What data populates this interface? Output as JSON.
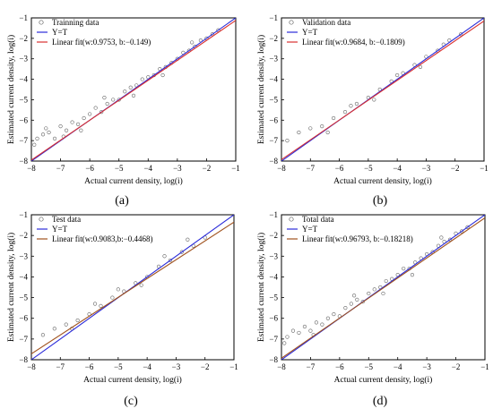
{
  "chart_data": [
    {
      "type": "scatter",
      "panel_label": "(a)",
      "xlabel": "Actual current density, log(i)",
      "ylabel": "Estimated current density, log(i)",
      "xlim": [
        -8,
        -1
      ],
      "ylim": [
        -8,
        -1
      ],
      "xticks": [
        -8,
        -7,
        -6,
        -5,
        -4,
        -3,
        -2,
        -1
      ],
      "yticks": [
        -8,
        -7,
        -6,
        -5,
        -4,
        -3,
        -2,
        -1
      ],
      "grid": false,
      "legend_position": "top-left",
      "series": [
        {
          "name": "Trainning data",
          "kind": "points",
          "marker": "open-circle",
          "color": "#666666",
          "points": [
            [
              -7.8,
              -6.9
            ],
            [
              -7.6,
              -6.7
            ],
            [
              -7.4,
              -6.6
            ],
            [
              -7.2,
              -6.9
            ],
            [
              -7.0,
              -6.3
            ],
            [
              -6.8,
              -6.5
            ],
            [
              -6.6,
              -6.1
            ],
            [
              -6.4,
              -6.2
            ],
            [
              -6.2,
              -5.9
            ],
            [
              -6.0,
              -5.7
            ],
            [
              -5.8,
              -5.4
            ],
            [
              -5.6,
              -5.6
            ],
            [
              -5.4,
              -5.2
            ],
            [
              -5.2,
              -5.0
            ],
            [
              -5.0,
              -5.0
            ],
            [
              -4.8,
              -4.6
            ],
            [
              -4.6,
              -4.4
            ],
            [
              -4.4,
              -4.3
            ],
            [
              -4.2,
              -4.0
            ],
            [
              -4.0,
              -3.9
            ],
            [
              -3.8,
              -3.8
            ],
            [
              -3.6,
              -3.5
            ],
            [
              -3.4,
              -3.4
            ],
            [
              -3.2,
              -3.2
            ],
            [
              -3.0,
              -3.0
            ],
            [
              -2.8,
              -2.7
            ],
            [
              -2.6,
              -2.6
            ],
            [
              -2.4,
              -2.4
            ],
            [
              -2.2,
              -2.1
            ],
            [
              -2.0,
              -2.0
            ],
            [
              -1.8,
              -1.8
            ],
            [
              -1.6,
              -1.6
            ],
            [
              -7.9,
              -7.2
            ],
            [
              -7.5,
              -6.4
            ],
            [
              -6.9,
              -6.8
            ],
            [
              -6.3,
              -6.5
            ],
            [
              -5.5,
              -4.9
            ],
            [
              -4.5,
              -4.8
            ],
            [
              -3.5,
              -3.8
            ],
            [
              -2.5,
              -2.2
            ]
          ]
        },
        {
          "name": "Y=T",
          "kind": "line",
          "color": "#2b2bd9",
          "w": 1,
          "b": 0
        },
        {
          "name": "Linear fit(w:0.9753, b:−0.149)",
          "kind": "line",
          "color": "#d93030",
          "w": 0.9753,
          "b": -0.149
        }
      ]
    },
    {
      "type": "scatter",
      "panel_label": "(b)",
      "xlabel": "Actual current density, log(i)",
      "ylabel": "Estimated current density, log(i)",
      "xlim": [
        -8,
        -1
      ],
      "ylim": [
        -8,
        -1
      ],
      "xticks": [
        -8,
        -7,
        -6,
        -5,
        -4,
        -3,
        -2,
        -1
      ],
      "yticks": [
        -8,
        -7,
        -6,
        -5,
        -4,
        -3,
        -2,
        -1
      ],
      "grid": false,
      "legend_position": "top-left",
      "series": [
        {
          "name": "Validation data",
          "kind": "points",
          "marker": "open-circle",
          "color": "#666666",
          "points": [
            [
              -7.8,
              -7.0
            ],
            [
              -7.4,
              -6.6
            ],
            [
              -7.0,
              -6.4
            ],
            [
              -6.6,
              -6.3
            ],
            [
              -6.2,
              -5.9
            ],
            [
              -5.8,
              -5.6
            ],
            [
              -5.4,
              -5.2
            ],
            [
              -5.0,
              -4.9
            ],
            [
              -4.6,
              -4.5
            ],
            [
              -4.2,
              -4.1
            ],
            [
              -3.8,
              -3.7
            ],
            [
              -3.4,
              -3.3
            ],
            [
              -3.0,
              -2.9
            ],
            [
              -2.6,
              -2.6
            ],
            [
              -2.2,
              -2.1
            ],
            [
              -1.8,
              -1.8
            ],
            [
              -6.4,
              -6.6
            ],
            [
              -5.6,
              -5.3
            ],
            [
              -4.8,
              -5.0
            ],
            [
              -4.0,
              -3.8
            ],
            [
              -3.2,
              -3.4
            ],
            [
              -2.4,
              -2.3
            ]
          ]
        },
        {
          "name": "Y=T",
          "kind": "line",
          "color": "#2b2bd9",
          "w": 1,
          "b": 0
        },
        {
          "name": "Linear fit(w:0.9684, b:−0.1809)",
          "kind": "line",
          "color": "#d93030",
          "w": 0.9684,
          "b": -0.1809
        }
      ]
    },
    {
      "type": "scatter",
      "panel_label": "(c)",
      "xlabel": "Actual current density, log(i)",
      "ylabel": "Estimated current density, log(i)",
      "xlim": [
        -8,
        -1
      ],
      "ylim": [
        -8,
        -1
      ],
      "xticks": [
        -8,
        -7,
        -6,
        -5,
        -4,
        -3,
        -2,
        -1
      ],
      "yticks": [
        -8,
        -7,
        -6,
        -5,
        -4,
        -3,
        -2,
        -1
      ],
      "grid": false,
      "legend_position": "top-left",
      "series": [
        {
          "name": "Test data",
          "kind": "points",
          "marker": "open-circle",
          "color": "#666666",
          "points": [
            [
              -7.6,
              -6.8
            ],
            [
              -7.2,
              -6.5
            ],
            [
              -6.8,
              -6.3
            ],
            [
              -6.4,
              -6.1
            ],
            [
              -6.0,
              -5.8
            ],
            [
              -5.6,
              -5.4
            ],
            [
              -5.2,
              -5.0
            ],
            [
              -4.8,
              -4.7
            ],
            [
              -4.4,
              -4.3
            ],
            [
              -4.0,
              -4.0
            ],
            [
              -3.6,
              -3.5
            ],
            [
              -3.2,
              -3.2
            ],
            [
              -2.8,
              -2.8
            ],
            [
              -2.4,
              -2.5
            ],
            [
              -2.0,
              -2.1
            ],
            [
              -6.6,
              -6.5
            ],
            [
              -5.8,
              -5.3
            ],
            [
              -5.0,
              -4.6
            ],
            [
              -4.2,
              -4.4
            ],
            [
              -3.4,
              -3.0
            ],
            [
              -2.6,
              -2.2
            ]
          ]
        },
        {
          "name": "Y=T",
          "kind": "line",
          "color": "#2b2bd9",
          "w": 1,
          "b": 0
        },
        {
          "name": "Linear fit(w:0.9083,b:−0.4468)",
          "kind": "line",
          "color": "#a0521e",
          "w": 0.9083,
          "b": -0.4468
        }
      ]
    },
    {
      "type": "scatter",
      "panel_label": "(d)",
      "xlabel": "Actual current density, log(i)",
      "ylabel": "Estimated current density, log(i)",
      "xlim": [
        -8,
        -1
      ],
      "ylim": [
        -8,
        -1
      ],
      "xticks": [
        -8,
        -7,
        -6,
        -5,
        -4,
        -3,
        -2,
        -1
      ],
      "yticks": [
        -8,
        -7,
        -6,
        -5,
        -4,
        -3,
        -2,
        -1
      ],
      "grid": false,
      "legend_position": "top-left",
      "series": [
        {
          "name": "Total data",
          "kind": "points",
          "marker": "open-circle",
          "color": "#666666",
          "points": [
            [
              -7.8,
              -6.9
            ],
            [
              -7.6,
              -6.6
            ],
            [
              -7.4,
              -6.7
            ],
            [
              -7.2,
              -6.4
            ],
            [
              -7.0,
              -6.6
            ],
            [
              -6.8,
              -6.2
            ],
            [
              -6.6,
              -6.3
            ],
            [
              -6.4,
              -6.0
            ],
            [
              -6.2,
              -5.8
            ],
            [
              -6.0,
              -5.9
            ],
            [
              -5.8,
              -5.5
            ],
            [
              -5.6,
              -5.3
            ],
            [
              -5.4,
              -5.1
            ],
            [
              -5.2,
              -5.2
            ],
            [
              -5.0,
              -4.8
            ],
            [
              -4.8,
              -4.6
            ],
            [
              -4.6,
              -4.5
            ],
            [
              -4.4,
              -4.2
            ],
            [
              -4.2,
              -4.1
            ],
            [
              -4.0,
              -3.9
            ],
            [
              -3.8,
              -3.6
            ],
            [
              -3.6,
              -3.6
            ],
            [
              -3.4,
              -3.3
            ],
            [
              -3.2,
              -3.1
            ],
            [
              -3.0,
              -2.9
            ],
            [
              -2.8,
              -2.8
            ],
            [
              -2.6,
              -2.5
            ],
            [
              -2.4,
              -2.3
            ],
            [
              -2.2,
              -2.2
            ],
            [
              -2.0,
              -1.9
            ],
            [
              -1.8,
              -1.8
            ],
            [
              -1.6,
              -1.6
            ],
            [
              -7.9,
              -7.2
            ],
            [
              -6.9,
              -6.8
            ],
            [
              -5.5,
              -4.9
            ],
            [
              -4.5,
              -4.8
            ],
            [
              -3.5,
              -3.9
            ],
            [
              -2.5,
              -2.1
            ]
          ]
        },
        {
          "name": "Y=T",
          "kind": "line",
          "color": "#2b2bd9",
          "w": 1,
          "b": 0
        },
        {
          "name": "Linear fit(w:0.96793, b:−0.18218)",
          "kind": "line",
          "color": "#a0521e",
          "w": 0.96793,
          "b": -0.18218
        }
      ]
    }
  ]
}
